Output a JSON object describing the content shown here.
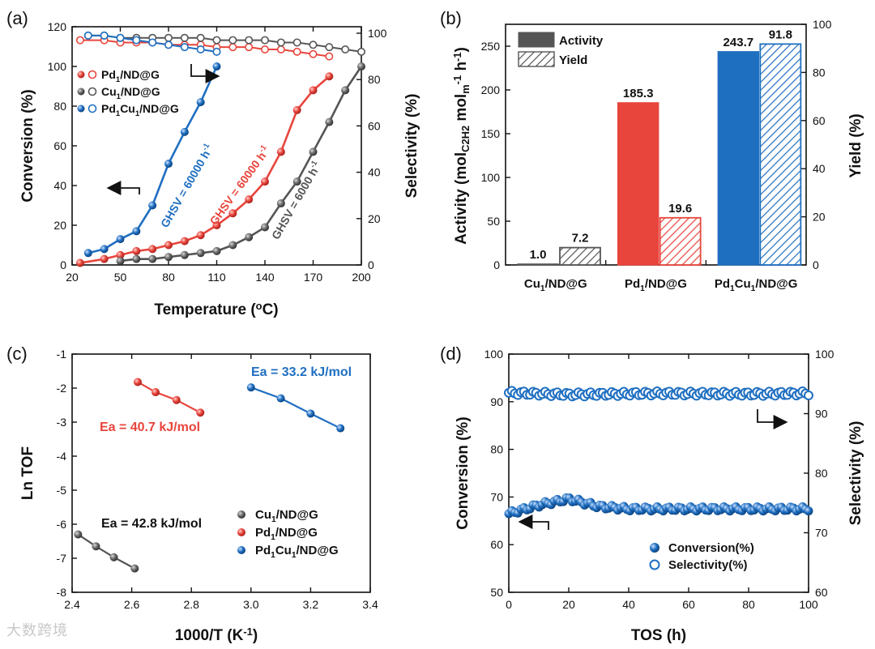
{
  "colors": {
    "red": "#e8453c",
    "black": "#555555",
    "blue": "#1f6fc1"
  },
  "watermark": "大数跨境",
  "chart_data": [
    {
      "panel": "(a)",
      "type": "line",
      "xlabel": "Temperature (oC)",
      "ylabel": "Conversion (%)",
      "ylabel2": "Selectivity (%)",
      "xlim": [
        20,
        200
      ],
      "ylim": [
        0,
        120
      ],
      "ylim2": [
        0,
        100
      ],
      "xticks": [
        20,
        50,
        80,
        110,
        140,
        170,
        200
      ],
      "yticks": [
        0,
        20,
        40,
        60,
        80,
        100,
        120
      ],
      "yticks2": [
        0,
        20,
        40,
        60,
        80,
        100
      ],
      "legend": {
        "position": "top-left",
        "entries": [
          "Pd1/ND@G",
          "Cu1/ND@G",
          "Pd1Cu1/ND@G"
        ]
      },
      "annotations": [
        "GHSV = 60000 h-1",
        "GHSV = 60000 h-1",
        "GHSV = 6000 h-1"
      ],
      "conversion": [
        {
          "name": "Pd1/ND@G",
          "color": "#e8453c",
          "label": "GHSV = 60000 h-1",
          "x": [
            25,
            40,
            50,
            60,
            70,
            80,
            90,
            100,
            110,
            120,
            130,
            140,
            150,
            160,
            170,
            180
          ],
          "y": [
            1,
            3,
            5,
            7,
            8,
            10,
            12,
            15,
            20,
            26,
            33,
            42,
            57,
            78,
            88,
            95
          ]
        },
        {
          "name": "Cu1/ND@G",
          "color": "#555555",
          "label": "GHSV = 6000 h-1",
          "x": [
            50,
            60,
            70,
            80,
            90,
            100,
            110,
            120,
            130,
            140,
            150,
            160,
            170,
            180,
            190,
            200
          ],
          "y": [
            2,
            3,
            3,
            4,
            5,
            6,
            7,
            10,
            14,
            19,
            31,
            42,
            57,
            72,
            88,
            100
          ]
        },
        {
          "name": "Pd1Cu1/ND@G",
          "color": "#1f6fc1",
          "label": "GHSV = 60000 h-1",
          "x": [
            30,
            40,
            50,
            60,
            70,
            80,
            90,
            100,
            110
          ],
          "y": [
            6,
            8,
            13,
            17,
            30,
            51,
            67,
            82,
            100
          ]
        }
      ],
      "selectivity": [
        {
          "name": "Pd1/ND@G",
          "color": "#e8453c",
          "x": [
            25,
            40,
            50,
            60,
            70,
            80,
            90,
            100,
            110,
            120,
            130,
            140,
            150,
            160,
            170,
            180
          ],
          "y": [
            97,
            97,
            96,
            96,
            96,
            95,
            95,
            95,
            94,
            94,
            94,
            93,
            93,
            92,
            91,
            90
          ]
        },
        {
          "name": "Cu1/ND@G",
          "color": "#555555",
          "x": [
            30,
            40,
            50,
            60,
            70,
            80,
            90,
            100,
            110,
            120,
            130,
            140,
            150,
            160,
            170,
            180,
            190,
            200
          ],
          "y": [
            99,
            99,
            98,
            98,
            98,
            98,
            98,
            98,
            97,
            97,
            97,
            97,
            96,
            96,
            95,
            94,
            93,
            92
          ]
        },
        {
          "name": "Pd1Cu1/ND@G",
          "color": "#1f6fc1",
          "x": [
            30,
            40,
            50,
            60,
            70,
            80,
            90,
            100,
            110
          ],
          "y": [
            99,
            99,
            98,
            97,
            96,
            95,
            94,
            93,
            92
          ]
        }
      ]
    },
    {
      "panel": "(b)",
      "type": "bar",
      "ylabel": "Activity (molC2H2 molm-1 h-1)",
      "ylabel2": "Yield (%)",
      "ylim": [
        0,
        275
      ],
      "ylim2": [
        0,
        100
      ],
      "yticks": [
        0,
        50,
        100,
        150,
        200,
        250
      ],
      "yticks2": [
        0,
        20,
        40,
        60,
        80,
        100
      ],
      "categories": [
        "Cu1/ND@G",
        "Pd1/ND@G",
        "Pd1Cu1/ND@G"
      ],
      "legend": {
        "position": "top-left",
        "entries": [
          "Activity",
          "Yield"
        ]
      },
      "series": [
        {
          "name": "Activity",
          "axis": "left",
          "values": [
            1.0,
            185.3,
            243.7
          ],
          "labels": [
            "1.0",
            "185.3",
            "243.7"
          ]
        },
        {
          "name": "Yield",
          "axis": "right",
          "values": [
            7.2,
            19.6,
            91.8
          ],
          "labels": [
            "7.2",
            "19.6",
            "91.8"
          ]
        }
      ],
      "bar_colors": [
        "#555555",
        "#e8453c",
        "#1f6fc1"
      ]
    },
    {
      "panel": "(c)",
      "type": "line",
      "xlabel": "1000/T (K-1)",
      "ylabel": "Ln TOF",
      "xlim": [
        2.4,
        3.4
      ],
      "ylim": [
        -8,
        -1
      ],
      "xticks": [
        2.4,
        2.6,
        2.8,
        3.0,
        3.2,
        3.4
      ],
      "yticks": [
        -8,
        -7,
        -6,
        -5,
        -4,
        -3,
        -2,
        -1
      ],
      "legend": {
        "position": "bottom-right",
        "entries": [
          "Cu1/ND@G",
          "Pd1/ND@G",
          "Pd1Cu1/ND@G"
        ]
      },
      "series": [
        {
          "name": "Cu1/ND@G",
          "color": "#555555",
          "label": "Ea = 42.8 kJ/mol",
          "x": [
            2.42,
            2.48,
            2.54,
            2.61
          ],
          "y": [
            -6.3,
            -6.65,
            -6.97,
            -7.3
          ]
        },
        {
          "name": "Pd1/ND@G",
          "color": "#e8453c",
          "label": "Ea = 40.7 kJ/mol",
          "x": [
            2.62,
            2.68,
            2.75,
            2.83
          ],
          "y": [
            -1.82,
            -2.12,
            -2.35,
            -2.72
          ]
        },
        {
          "name": "Pd1Cu1/ND@G",
          "color": "#1f6fc1",
          "label": "Ea = 33.2 kJ/mol",
          "x": [
            3.0,
            3.1,
            3.2,
            3.3
          ],
          "y": [
            -1.98,
            -2.3,
            -2.75,
            -3.18
          ]
        }
      ]
    },
    {
      "panel": "(d)",
      "type": "scatter",
      "xlabel": "TOS (h)",
      "ylabel": "Conversion (%)",
      "ylabel2": "Selectivity (%)",
      "xlim": [
        0,
        100
      ],
      "ylim": [
        50,
        100
      ],
      "ylim2": [
        60,
        100
      ],
      "xticks": [
        0,
        20,
        40,
        60,
        80,
        100
      ],
      "yticks": [
        50,
        60,
        70,
        80,
        90,
        100
      ],
      "yticks2": [
        60,
        70,
        80,
        90,
        100
      ],
      "legend": {
        "position": "bottom-center",
        "entries": [
          "Conversion(%)",
          "Selectivity(%)"
        ]
      },
      "series": [
        {
          "name": "Conversion(%)",
          "axis": "left",
          "filled": true,
          "x_range": [
            0,
            100
          ],
          "count": 100,
          "profile": [
            [
              0,
              66.5
            ],
            [
              10,
              68.3
            ],
            [
              20,
              69.6
            ],
            [
              30,
              68.0
            ],
            [
              40,
              67.5
            ],
            [
              60,
              67.5
            ],
            [
              100,
              67.5
            ]
          ]
        },
        {
          "name": "Selectivity(%)",
          "axis": "right",
          "filled": false,
          "x_range": [
            0,
            100
          ],
          "count": 100,
          "profile": [
            [
              0,
              93.5
            ],
            [
              20,
              93.2
            ],
            [
              50,
              93.4
            ],
            [
              80,
              93.3
            ],
            [
              100,
              93.4
            ]
          ]
        }
      ]
    }
  ]
}
